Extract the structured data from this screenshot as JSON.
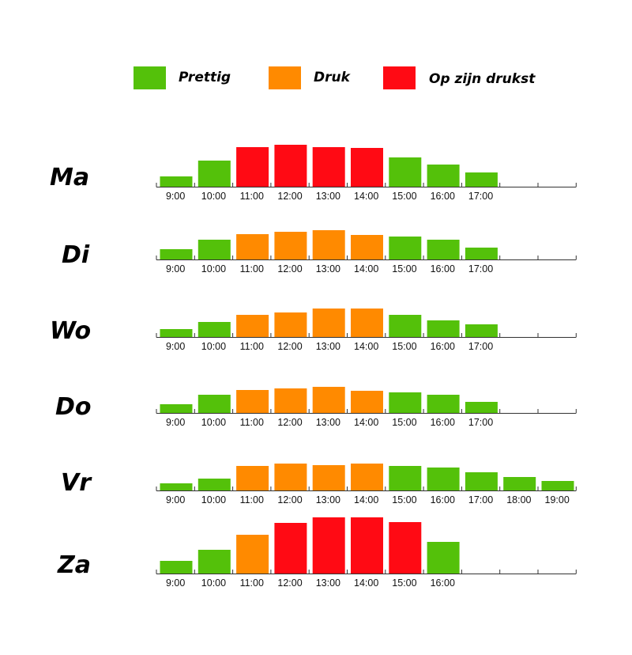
{
  "colors": {
    "prettig": "#54c10a",
    "druk": "#ff8a00",
    "drukst": "#ff0a14"
  },
  "legend": [
    {
      "label": "Prettig",
      "color": "#54c10a"
    },
    {
      "label": "Druk",
      "color": "#ff8a00"
    },
    {
      "label": "Op zijn drukst",
      "color": "#ff0a14"
    }
  ],
  "chart_data": [
    {
      "type": "bar",
      "day": "Ma",
      "categories": [
        "9:00",
        "10:00",
        "11:00",
        "12:00",
        "13:00",
        "14:00",
        "15:00",
        "16:00",
        "17:00"
      ],
      "values": [
        13,
        33,
        50,
        53,
        50,
        49,
        37,
        28,
        18
      ],
      "levels": [
        "prettig",
        "prettig",
        "drukst",
        "drukst",
        "drukst",
        "drukst",
        "prettig",
        "prettig",
        "prettig"
      ]
    },
    {
      "type": "bar",
      "day": "Di",
      "categories": [
        "9:00",
        "10:00",
        "11:00",
        "12:00",
        "13:00",
        "14:00",
        "15:00",
        "16:00",
        "17:00"
      ],
      "values": [
        13,
        25,
        32,
        35,
        37,
        31,
        29,
        25,
        15
      ],
      "levels": [
        "prettig",
        "prettig",
        "druk",
        "druk",
        "druk",
        "druk",
        "prettig",
        "prettig",
        "prettig"
      ]
    },
    {
      "type": "bar",
      "day": "Wo",
      "categories": [
        "9:00",
        "10:00",
        "11:00",
        "12:00",
        "13:00",
        "14:00",
        "15:00",
        "16:00",
        "17:00"
      ],
      "values": [
        10,
        19,
        28,
        31,
        36,
        36,
        28,
        21,
        16
      ],
      "levels": [
        "prettig",
        "prettig",
        "druk",
        "druk",
        "druk",
        "druk",
        "prettig",
        "prettig",
        "prettig"
      ]
    },
    {
      "type": "bar",
      "day": "Do",
      "categories": [
        "9:00",
        "10:00",
        "11:00",
        "12:00",
        "13:00",
        "14:00",
        "15:00",
        "16:00",
        "17:00"
      ],
      "values": [
        11,
        23,
        29,
        31,
        33,
        28,
        26,
        23,
        14
      ],
      "levels": [
        "prettig",
        "prettig",
        "druk",
        "druk",
        "druk",
        "druk",
        "prettig",
        "prettig",
        "prettig"
      ]
    },
    {
      "type": "bar",
      "day": "Vr",
      "categories": [
        "9:00",
        "10:00",
        "11:00",
        "12:00",
        "13:00",
        "14:00",
        "15:00",
        "16:00",
        "17:00",
        "18:00",
        "19:00"
      ],
      "values": [
        9,
        15,
        31,
        34,
        32,
        34,
        31,
        29,
        23,
        17,
        12
      ],
      "levels": [
        "prettig",
        "prettig",
        "druk",
        "druk",
        "druk",
        "druk",
        "prettig",
        "prettig",
        "prettig",
        "prettig",
        "prettig"
      ]
    },
    {
      "type": "bar",
      "day": "Za",
      "categories": [
        "9:00",
        "10:00",
        "11:00",
        "12:00",
        "13:00",
        "14:00",
        "15:00",
        "16:00"
      ],
      "values": [
        16,
        30,
        49,
        64,
        71,
        71,
        65,
        40
      ],
      "levels": [
        "prettig",
        "prettig",
        "druk",
        "drukst",
        "drukst",
        "drukst",
        "drukst",
        "prettig"
      ]
    }
  ]
}
